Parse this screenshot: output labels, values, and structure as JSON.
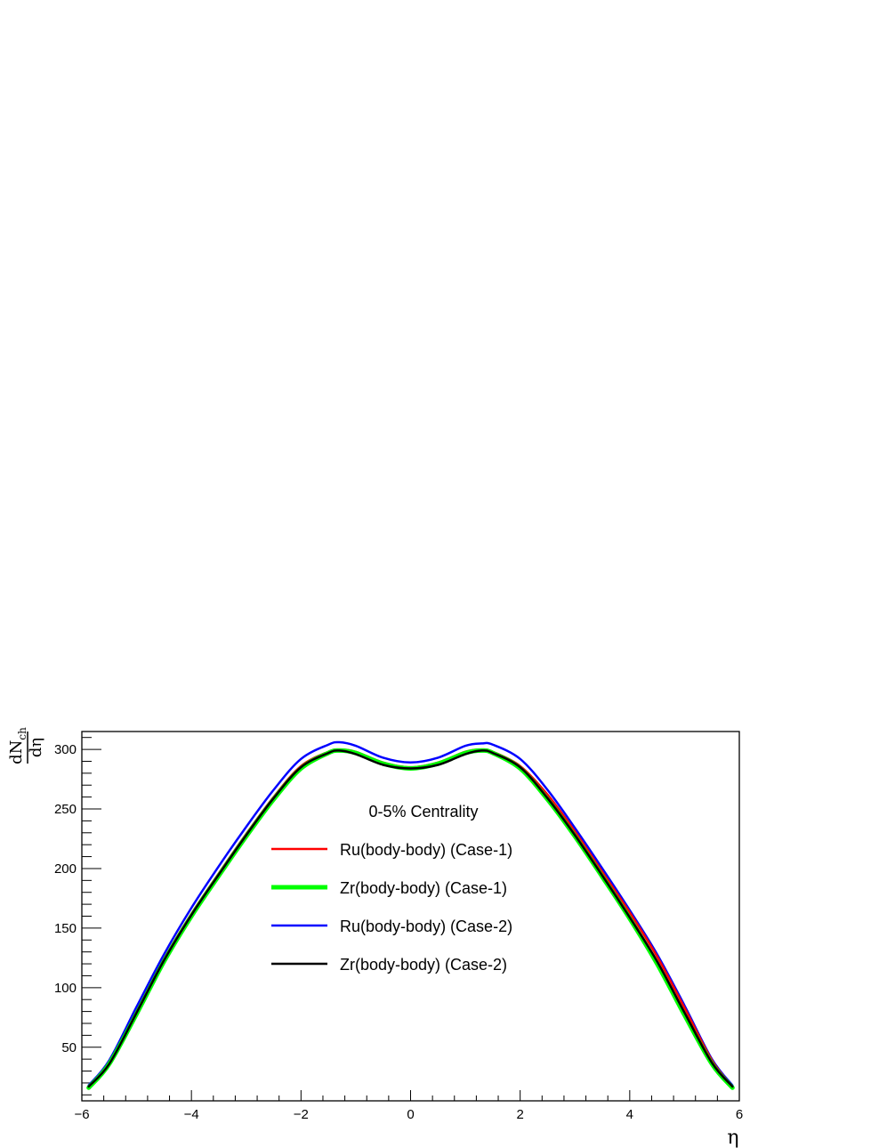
{
  "chart_data": {
    "type": "line",
    "title": "0-5% Centrality",
    "xlabel": "η",
    "ylabel": {
      "numerator": "dN",
      "subscript": "ch",
      "denominator": "dη"
    },
    "xlim": [
      -6,
      6
    ],
    "ylim": [
      5,
      315
    ],
    "x_ticks": [
      -6,
      -4,
      -2,
      0,
      2,
      4,
      6
    ],
    "x_tick_labels": [
      "−6",
      "−4",
      "−2",
      "0",
      "2",
      "4",
      "6"
    ],
    "y_ticks": [
      50,
      100,
      150,
      200,
      250,
      300
    ],
    "y_tick_labels": [
      "50",
      "100",
      "150",
      "200",
      "250",
      "300"
    ],
    "grid": false,
    "legend_position": "center",
    "x": [
      -5.875,
      -5.5,
      -5.0,
      -4.5,
      -4.0,
      -3.5,
      -3.0,
      -2.5,
      -2.0,
      -1.5,
      -1.3,
      -1.0,
      -0.5,
      0.0,
      0.5,
      1.0,
      1.3,
      1.5,
      2.0,
      2.5,
      3.0,
      3.5,
      4.0,
      4.5,
      5.0,
      5.5,
      5.875
    ],
    "series": [
      {
        "name": "Ru(body-body) (Case-1)",
        "color": "#ff0000",
        "width": 2.5,
        "values": [
          17,
          37,
          80,
          124,
          162,
          196,
          229,
          260,
          286,
          298,
          300,
          298,
          289,
          285,
          289,
          298,
          300,
          298,
          286,
          262,
          231,
          197,
          163,
          126,
          83,
          39,
          17
        ]
      },
      {
        "name": "Zr(body-body) (Case-1)",
        "color": "#00ff00",
        "width": 5,
        "values": [
          16,
          36,
          78,
          122,
          160,
          194,
          227,
          258,
          284,
          297,
          299,
          297,
          288,
          284,
          288,
          297,
          299,
          297,
          284,
          258,
          227,
          193,
          158,
          120,
          77,
          36,
          16
        ]
      },
      {
        "name": "Ru(body-body) (Case-2)",
        "color": "#0000ff",
        "width": 2.5,
        "values": [
          18,
          39,
          84,
          128,
          167,
          202,
          235,
          266,
          292,
          304,
          306,
          303,
          293,
          289,
          293,
          303,
          305,
          304,
          292,
          266,
          234,
          200,
          165,
          128,
          85,
          40,
          18
        ]
      },
      {
        "name": "Zr(body-body) (Case-2)",
        "color": "#000000",
        "width": 2.5,
        "values": [
          17,
          36,
          79,
          123,
          161,
          195,
          228,
          259,
          285,
          297,
          299,
          296,
          287,
          284,
          287,
          296,
          299,
          297,
          285,
          259,
          228,
          194,
          159,
          122,
          79,
          37,
          17
        ]
      }
    ]
  }
}
